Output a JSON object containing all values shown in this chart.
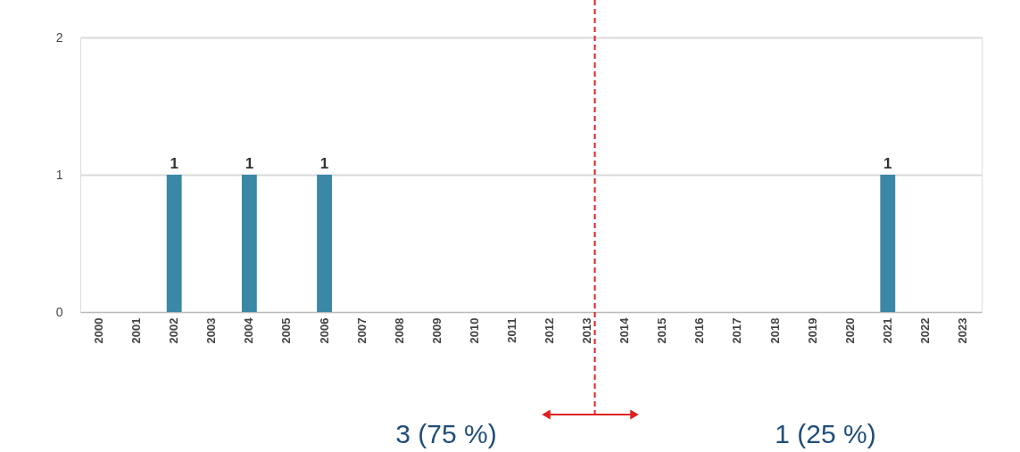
{
  "chart_data": {
    "type": "bar",
    "categories": [
      "2000",
      "2001",
      "2002",
      "2003",
      "2004",
      "2005",
      "2006",
      "2007",
      "2008",
      "2009",
      "2010",
      "2011",
      "2012",
      "2013",
      "2014",
      "2015",
      "2016",
      "2017",
      "2018",
      "2019",
      "2020",
      "2021",
      "2022",
      "2023"
    ],
    "values": [
      0,
      0,
      1,
      0,
      1,
      0,
      1,
      0,
      0,
      0,
      0,
      0,
      0,
      0,
      0,
      0,
      0,
      0,
      0,
      0,
      0,
      1,
      0,
      0
    ],
    "value_labels": [
      null,
      null,
      "1",
      null,
      "1",
      null,
      "1",
      null,
      null,
      null,
      null,
      null,
      null,
      null,
      null,
      null,
      null,
      null,
      null,
      null,
      null,
      "1",
      null,
      null
    ],
    "color": "#3a87a6",
    "ylim": [
      0,
      2
    ],
    "yticks": [
      0,
      1,
      2
    ],
    "grid": "y",
    "ref_lines": [
      {
        "axis": "x",
        "value": "2013",
        "color": "#e02020",
        "line_style": "dashed"
      }
    ],
    "annotations": [
      "3 (75 %)",
      "1 (25 %)"
    ]
  }
}
